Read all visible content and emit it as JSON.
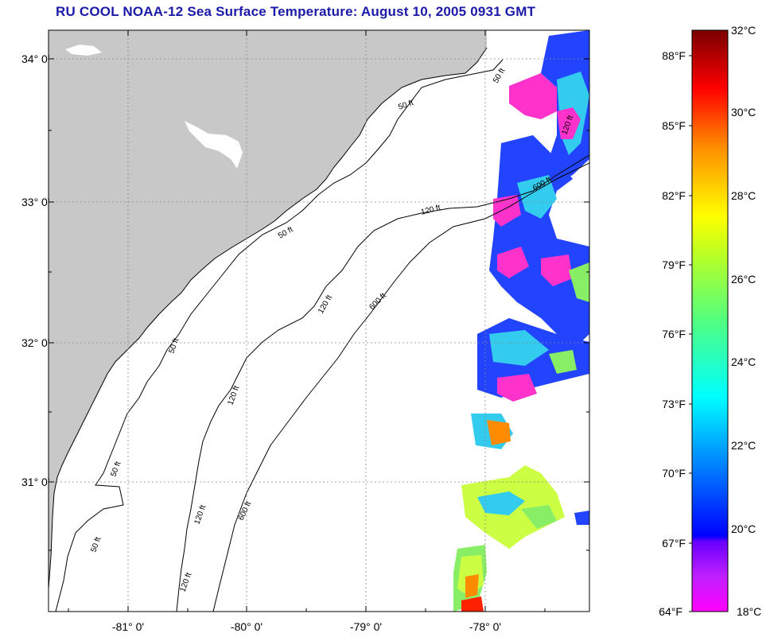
{
  "title": "RU COOL  NOAA-12  Sea Surface Temperature:  August 10, 2005 0931 GMT",
  "latitude_labels": [
    "34° 0'",
    "33° 0'",
    "32° 0'",
    "31° 0'"
  ],
  "longitude_labels": [
    "-81° 0'",
    "-80° 0'",
    "-79° 0'",
    "-78° 0'"
  ],
  "contour_labels": [
    "50 ft",
    "50 ft",
    "50 ft",
    "50 ft",
    "50 ft",
    "50 ft",
    "120 ft",
    "120 ft",
    "120 ft",
    "120 ft",
    "120 ft",
    "120 ft",
    "600 ft",
    "600 ft",
    "600 ft"
  ],
  "colorbar": {
    "fahrenheit": [
      "88°F",
      "85°F",
      "82°F",
      "79°F",
      "76°F",
      "73°F",
      "70°F",
      "67°F",
      "64°F"
    ],
    "celsius": [
      "32°C",
      "30°C",
      "28°C",
      "26°C",
      "24°C",
      "22°C",
      "20°C",
      "18°C"
    ],
    "colors": [
      "#8b0000",
      "#ff0000",
      "#ff8c00",
      "#ffff00",
      "#7fff00",
      "#00ff7f",
      "#00ffff",
      "#0080ff",
      "#0000ff",
      "#8000ff",
      "#ff00ff"
    ]
  },
  "colors": {
    "title": "#1a1aa8",
    "land": "#c8c8c8",
    "ocean": "#ffffff"
  }
}
